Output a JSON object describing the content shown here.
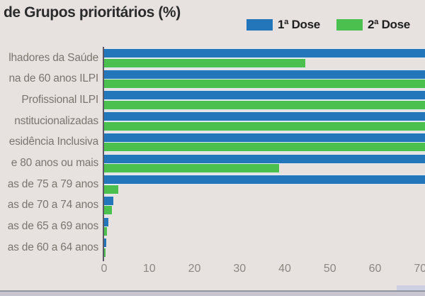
{
  "page": {
    "background": "#e7e2df"
  },
  "chart_data": {
    "type": "bar",
    "orientation": "horizontal",
    "title": "de Grupos prioritários (%)",
    "categories": [
      "lhadores da Saúde",
      "na de 60 anos ILPI",
      "Profissional ILPI",
      "nstitucionalizadas",
      "esidência Inclusiva",
      "e 80 anos ou mais",
      "as de 75 a 79 anos",
      "as de 70 a 74 anos",
      "as de 65 a 69 anos",
      "as de 60 a 64 anos"
    ],
    "series": [
      {
        "name": "1ª Dose",
        "color": "#2276b9",
        "values": [
          72,
          72,
          72,
          72,
          72,
          72,
          72,
          2.1,
          0.9,
          0.4
        ],
        "clipped_at_right_edge": [
          true,
          true,
          true,
          true,
          true,
          true,
          true,
          false,
          false,
          false
        ]
      },
      {
        "name": "2ª Dose",
        "color": "#4cc04e",
        "values": [
          44.5,
          72,
          72,
          72,
          72,
          38.7,
          3.1,
          1.8,
          0.7,
          0.3
        ],
        "clipped_at_right_edge": [
          false,
          true,
          true,
          true,
          true,
          false,
          false,
          false,
          false,
          false
        ]
      }
    ],
    "x_ticks": [
      "0",
      "10",
      "20",
      "30",
      "40",
      "50",
      "60",
      "70"
    ],
    "x_axis_visible_range": [
      0,
      71
    ],
    "legend_position": "top-right",
    "grid": false
  },
  "colors": {
    "background": "#e7e2df",
    "bar_blue": "#2276b9",
    "bar_green": "#4cc04e",
    "title_text": "#2b2b2b",
    "category_label_text": "#7c756f",
    "tick_text": "#8d8781",
    "axis_line": "#5c5965",
    "footer_line": "#8f97a3",
    "footer_strip": "#c9c5d0"
  }
}
